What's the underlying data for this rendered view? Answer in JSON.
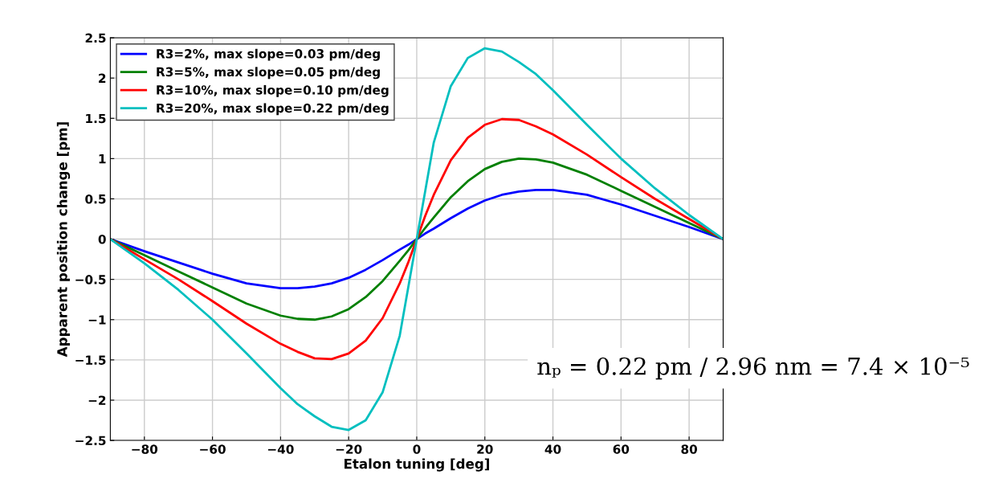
{
  "chart_data": {
    "type": "line",
    "xlabel": "Etalon tuning [deg]",
    "ylabel": "Apparent position change [pm]",
    "x": [
      -90,
      -80,
      -70,
      -60,
      -50,
      -40,
      -35,
      -30,
      -25,
      -20,
      -15,
      -10,
      -5,
      -2.5,
      0,
      2.5,
      5,
      10,
      15,
      20,
      25,
      30,
      35,
      40,
      50,
      60,
      70,
      80,
      90
    ],
    "series": [
      {
        "name": "R3=2%, max slope=0.03 pm/deg",
        "color": "#0000ff",
        "values": [
          0,
          -0.15,
          -0.29,
          -0.43,
          -0.55,
          -0.61,
          -0.61,
          -0.59,
          -0.55,
          -0.48,
          -0.38,
          -0.26,
          -0.13,
          -0.07,
          0,
          0.07,
          0.13,
          0.26,
          0.38,
          0.48,
          0.55,
          0.59,
          0.61,
          0.61,
          0.55,
          0.43,
          0.29,
          0.15,
          0
        ]
      },
      {
        "name": "R3=5%, max slope=0.05 pm/deg",
        "color": "#008000",
        "values": [
          0,
          -0.2,
          -0.4,
          -0.6,
          -0.8,
          -0.95,
          -0.99,
          -1.0,
          -0.96,
          -0.87,
          -0.72,
          -0.52,
          -0.27,
          -0.14,
          0,
          0.14,
          0.27,
          0.52,
          0.72,
          0.87,
          0.96,
          1.0,
          0.99,
          0.95,
          0.8,
          0.6,
          0.4,
          0.2,
          0
        ]
      },
      {
        "name": "R3=10%, max slope=0.10 pm/deg",
        "color": "#ff0000",
        "values": [
          0,
          -0.25,
          -0.5,
          -0.77,
          -1.05,
          -1.3,
          -1.4,
          -1.48,
          -1.49,
          -1.42,
          -1.26,
          -0.98,
          -0.55,
          -0.29,
          0,
          0.29,
          0.55,
          0.98,
          1.26,
          1.42,
          1.49,
          1.48,
          1.4,
          1.3,
          1.05,
          0.77,
          0.5,
          0.25,
          0
        ]
      },
      {
        "name": "R3=20%, max slope=0.22 pm/deg",
        "color": "#00bfbf",
        "values": [
          0,
          -0.3,
          -0.63,
          -1.0,
          -1.42,
          -1.85,
          -2.05,
          -2.2,
          -2.33,
          -2.37,
          -2.25,
          -1.9,
          -1.2,
          -0.6,
          0,
          0.6,
          1.2,
          1.9,
          2.25,
          2.37,
          2.33,
          2.2,
          2.05,
          1.85,
          1.42,
          1.0,
          0.63,
          0.3,
          0
        ]
      }
    ],
    "xlim": [
      -90,
      90
    ],
    "xticks": [
      {
        "value": -80,
        "label": "−80"
      },
      {
        "value": -60,
        "label": "−60"
      },
      {
        "value": -40,
        "label": "−40"
      },
      {
        "value": -20,
        "label": "−20"
      },
      0,
      20,
      40,
      60,
      80
    ],
    "ylim": [
      -2.5,
      2.5
    ],
    "yticks": [
      {
        "value": -2.5,
        "label": "−2.5"
      },
      {
        "value": -2,
        "label": "−2"
      },
      {
        "value": -1.5,
        "label": "−1.5"
      },
      {
        "value": -1,
        "label": "−1"
      },
      {
        "value": -0.5,
        "label": "−0.5"
      },
      0,
      0.5,
      1,
      1.5,
      2,
      2.5
    ],
    "grid": true,
    "legend": "top left",
    "annotations": [
      "nₚ = 0.22 pm / 2.96 nm = 7.4 × 10⁻⁵"
    ]
  }
}
